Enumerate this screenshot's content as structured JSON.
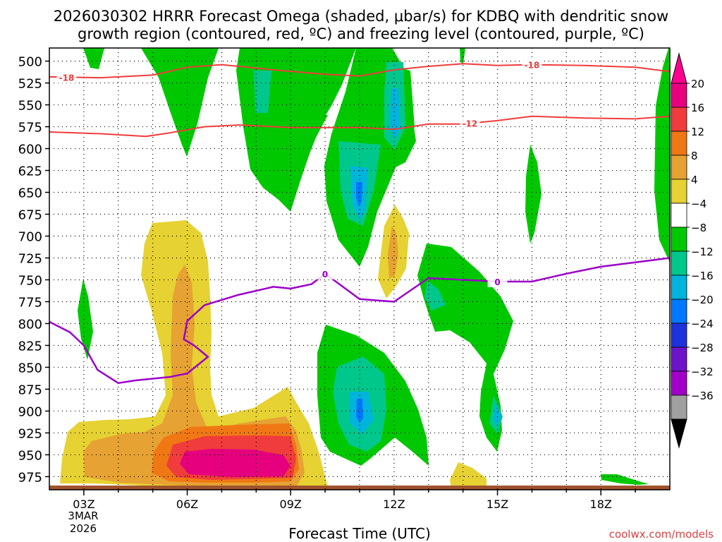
{
  "chart_data": {
    "type": "heatmap",
    "title": "2026030302 HRRR Forecast Omega (shaded, μbar/s) for KDBQ with dendritic snow",
    "subtitle": "growth region (contoured, red, ºC) and freezing level (contoured, purple, ºC)",
    "xlabel": "Forecast Time (UTC)",
    "ylabel": "",
    "credit": "coolwx.com/models",
    "x_ticks": [
      "03Z",
      "06Z",
      "09Z",
      "12Z",
      "15Z",
      "18Z"
    ],
    "x_hours": [
      3,
      6,
      9,
      12,
      15,
      18
    ],
    "xlim": [
      2.0,
      20.0
    ],
    "date_label_1": "3MAR",
    "date_label_2": "2026",
    "y_ticks": [
      500,
      525,
      550,
      575,
      600,
      625,
      650,
      675,
      700,
      725,
      750,
      775,
      800,
      825,
      850,
      875,
      900,
      925,
      950,
      975
    ],
    "y_tick_labels": [
      "500",
      "525",
      "550",
      "575",
      "600",
      "625",
      "650",
      "675",
      "700",
      "725",
      "750",
      "775",
      "800",
      "825",
      "850",
      "875",
      "900",
      "925",
      "950",
      "975"
    ],
    "ylim_hpa": [
      485,
      990
    ],
    "colorbar": {
      "labels": [
        "20",
        "16",
        "12",
        "8",
        "4",
        "−4",
        "−8",
        "−12",
        "−16",
        "−20",
        "−24",
        "−28",
        "−32",
        "−36"
      ],
      "values": [
        20,
        16,
        12,
        8,
        4,
        -4,
        -8,
        -12,
        -16,
        -20,
        -24,
        -28,
        -32,
        -36
      ],
      "colors": [
        "#e6007e",
        "#f03c3c",
        "#f07814",
        "#e6a232",
        "#e6d232",
        "#ffffff",
        "#00c800",
        "#00c88c",
        "#00b4dc",
        "#0078ff",
        "#1e32dc",
        "#6e14c8",
        "#a000c8",
        "#a0a0a0"
      ],
      "top_arrow_color": "#ff0090",
      "bottom_arrow_color": "#000000"
    },
    "contours": {
      "dgz_color": "#f03c3c",
      "freezing_color": "#9b00c8",
      "dgz_levels": [
        {
          "label": "-18",
          "points": [
            [
              2.0,
              518
            ],
            [
              3.5,
              519
            ],
            [
              5.0,
              516
            ],
            [
              6.0,
              507
            ],
            [
              7.0,
              504
            ],
            [
              8.5,
              510
            ],
            [
              10.0,
              515
            ],
            [
              11.0,
              517
            ],
            [
              12.0,
              510
            ],
            [
              13.0,
              506
            ],
            [
              14.0,
              503
            ],
            [
              15.0,
              505
            ],
            [
              16.0,
              504
            ],
            [
              17.5,
              505
            ],
            [
              19.0,
              507
            ],
            [
              20.0,
              512
            ]
          ]
        },
        {
          "label": "-12",
          "points": [
            [
              2.0,
              581
            ],
            [
              3.5,
              583
            ],
            [
              4.8,
              586
            ],
            [
              5.5,
              582
            ],
            [
              6.5,
              575
            ],
            [
              7.5,
              573
            ],
            [
              9.0,
              576
            ],
            [
              11.0,
              576
            ],
            [
              12.0,
              578
            ],
            [
              13.0,
              572
            ],
            [
              14.0,
              572
            ],
            [
              15.0,
              568
            ],
            [
              16.0,
              563
            ],
            [
              17.5,
              565
            ],
            [
              19.0,
              566
            ],
            [
              20.0,
              563
            ]
          ]
        }
      ],
      "freezing_level": {
        "label": "0",
        "points": [
          [
            2.0,
            798
          ],
          [
            2.6,
            810
          ],
          [
            3.0,
            825
          ],
          [
            3.4,
            853
          ],
          [
            4.0,
            868
          ],
          [
            4.5,
            865
          ],
          [
            5.5,
            861
          ],
          [
            6.0,
            857
          ],
          [
            6.6,
            838
          ],
          [
            6.2,
            825
          ],
          [
            5.9,
            818
          ],
          [
            6.0,
            797
          ],
          [
            6.5,
            779
          ],
          [
            7.5,
            767
          ],
          [
            8.5,
            758
          ],
          [
            9.0,
            760
          ],
          [
            9.6,
            755
          ],
          [
            10.0,
            743
          ],
          [
            11.0,
            772
          ],
          [
            12.0,
            775
          ],
          [
            13.0,
            748
          ],
          [
            14.0,
            750
          ],
          [
            15.0,
            752
          ],
          [
            16.0,
            752
          ],
          [
            17.0,
            743
          ],
          [
            18.0,
            735
          ],
          [
            19.0,
            730
          ],
          [
            20.0,
            725
          ]
        ]
      }
    }
  }
}
